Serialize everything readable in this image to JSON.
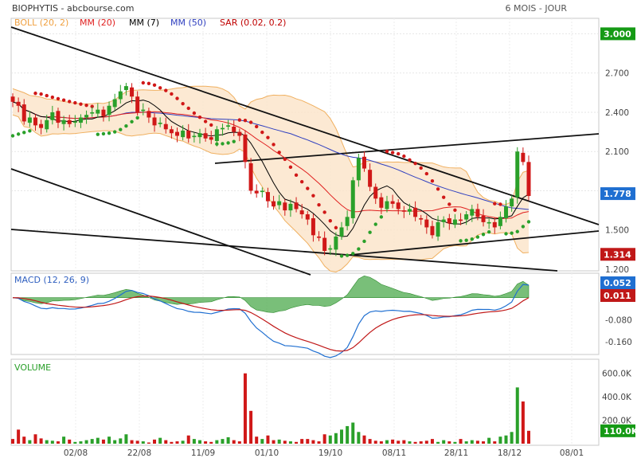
{
  "header": {
    "ticker": "BIOPHYTIS",
    "source": "abcbourse.com",
    "period": "6 MOIS",
    "interval": "JOUR",
    "legend": [
      {
        "label": "BOLL (20, 2)",
        "color": "#f0b060"
      },
      {
        "label": "MM (20)",
        "color": "#e02020"
      },
      {
        "label": "MM (7)",
        "color": "#000000"
      },
      {
        "label": "MM (50)",
        "color": "#3040c0"
      },
      {
        "label": "SAR (0.02, 0.2)",
        "color": "#c00000"
      }
    ]
  },
  "chart_data": [
    {
      "type": "candlestick",
      "title": "BIOPHYTIS",
      "ylim": [
        1.2,
        3.1
      ],
      "y_ticks": [
        "1.200",
        "1.500",
        "1.800",
        "2.100",
        "2.400",
        "2.700",
        "3.000"
      ],
      "x_ticks": [
        "02/08",
        "22/08",
        "11/09",
        "01/10",
        "19/10",
        "08/11",
        "28/11",
        "18/12",
        "08/01"
      ],
      "price_badges": [
        {
          "label": "3.000",
          "value": 3.0,
          "color": "#159a15"
        },
        {
          "label": "1.778",
          "value": 1.778,
          "color": "#1f6fd1"
        },
        {
          "label": "1.314",
          "value": 1.314,
          "color": "#c01818"
        }
      ],
      "closes": [
        2.48,
        2.45,
        2.33,
        2.36,
        2.3,
        2.28,
        2.34,
        2.4,
        2.32,
        2.34,
        2.31,
        2.33,
        2.36,
        2.38,
        2.4,
        2.42,
        2.37,
        2.45,
        2.5,
        2.56,
        2.6,
        2.52,
        2.4,
        2.42,
        2.36,
        2.3,
        2.32,
        2.27,
        2.24,
        2.22,
        2.26,
        2.2,
        2.22,
        2.24,
        2.2,
        2.19,
        2.27,
        2.28,
        2.3,
        2.25,
        2.22,
        2.02,
        1.8,
        1.78,
        1.8,
        1.72,
        1.68,
        1.72,
        1.65,
        1.7,
        1.66,
        1.62,
        1.58,
        1.46,
        1.44,
        1.34,
        1.36,
        1.45,
        1.52,
        1.6,
        1.88,
        2.05,
        1.97,
        1.83,
        1.74,
        1.67,
        1.72,
        1.7,
        1.66,
        1.64,
        1.66,
        1.6,
        1.58,
        1.52,
        1.46,
        1.56,
        1.58,
        1.55,
        1.58,
        1.57,
        1.62,
        1.66,
        1.6,
        1.56,
        1.56,
        1.52,
        1.6,
        1.68,
        1.74,
        2.1,
        2.02,
        1.76
      ],
      "series_info": [
        {
          "name": "BOLL (20, 2)"
        },
        {
          "name": "MM (20)"
        },
        {
          "name": "MM (7)"
        },
        {
          "name": "MM (50)"
        },
        {
          "name": "SAR (0.02, 0.2)"
        }
      ]
    },
    {
      "type": "line",
      "title": "MACD (12, 26, 9)",
      "ylim": [
        -0.2,
        0.08
      ],
      "y_ticks": [
        "-0.160",
        "-0.080"
      ],
      "price_badges": [
        {
          "label": "0.052",
          "value": 0.052,
          "color": "#1f6fd1"
        },
        {
          "label": "0.011",
          "value": 0.011,
          "color": "#c01818"
        }
      ]
    },
    {
      "type": "bar",
      "title": "VOLUME",
      "ylim": [
        0,
        700
      ],
      "y_ticks": [
        "200.0K",
        "400.0K",
        "600.0K"
      ],
      "volumes": [
        40,
        120,
        60,
        30,
        80,
        45,
        30,
        25,
        20,
        60,
        35,
        15,
        20,
        30,
        40,
        50,
        35,
        60,
        30,
        45,
        80,
        30,
        25,
        20,
        10,
        35,
        50,
        30,
        15,
        20,
        25,
        70,
        40,
        30,
        20,
        15,
        30,
        40,
        55,
        30,
        20,
        600,
        280,
        60,
        40,
        70,
        30,
        35,
        25,
        20,
        15,
        40,
        40,
        30,
        20,
        80,
        70,
        90,
        120,
        150,
        180,
        100,
        70,
        40,
        25,
        20,
        30,
        35,
        25,
        30,
        20,
        15,
        20,
        25,
        40,
        15,
        30,
        20,
        15,
        40,
        20,
        30,
        25,
        20,
        50,
        20,
        60,
        70,
        100,
        480,
        360,
        110
      ],
      "price_badges": [
        {
          "label": "110.0K",
          "value": 110,
          "color": "#159a15"
        }
      ]
    }
  ]
}
